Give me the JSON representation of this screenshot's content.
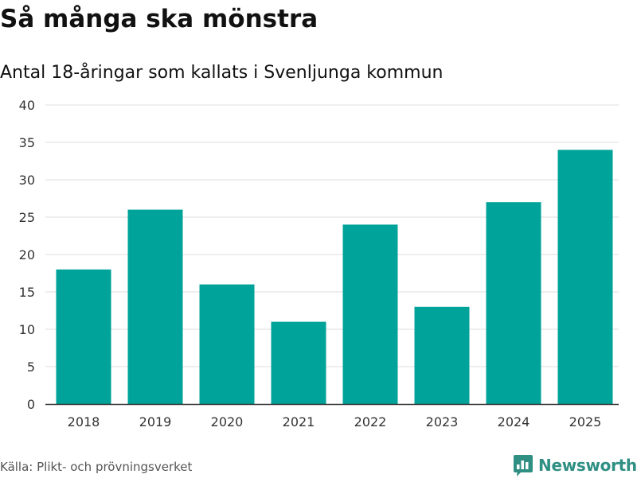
{
  "colors": {
    "bar": "#00a399",
    "grid": "#dddddd",
    "axis": "#333333",
    "tick_text": "#333333",
    "brand": "#2f8f83"
  },
  "chart_data": {
    "type": "bar",
    "title": "Så många ska mönstra",
    "subtitle": "Antal 18-åringar som kallats i Svenljunga kommun",
    "categories": [
      "2018",
      "2019",
      "2020",
      "2021",
      "2022",
      "2023",
      "2024",
      "2025"
    ],
    "values": [
      18,
      26,
      16,
      11,
      24,
      13,
      27,
      34
    ],
    "ylim": [
      0,
      40
    ],
    "yticks": [
      0,
      5,
      10,
      15,
      20,
      25,
      30,
      35,
      40
    ],
    "xlabel": "",
    "ylabel": "",
    "grid": true,
    "legend": "none"
  },
  "footer": {
    "source": "Källa: Plikt- och prövningsverket",
    "brand_name": "Newsworthy",
    "brand_icon": "newsworthy-logo-icon"
  }
}
